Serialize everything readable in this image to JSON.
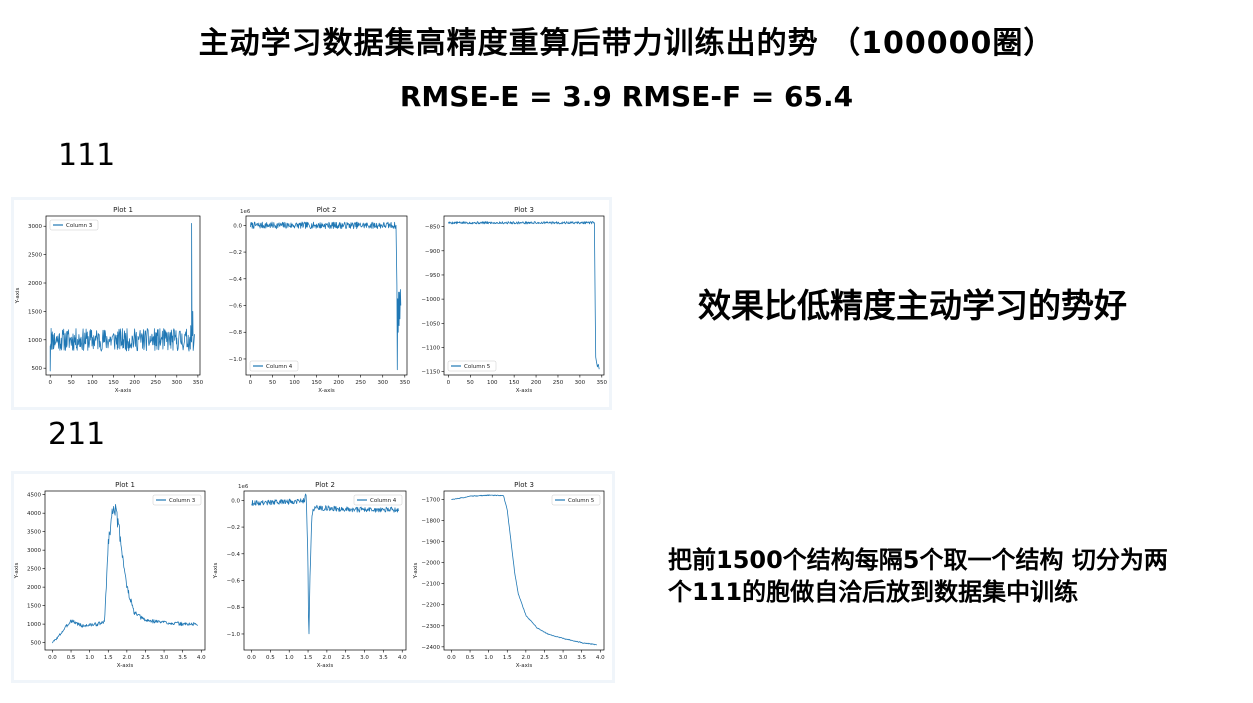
{
  "slide": {
    "title": "主动学习数据集高精度重算后带力训练出的势 （100000圈）",
    "subtitle": "RMSE-E = 3.9    RMSE-F = 65.4",
    "label_111": "111",
    "label_211": "211",
    "note_right": "效果比低精度主动学习的势好",
    "note_bottom_line1": "把前1500个结构每隔5个取一个结构 切分为两",
    "note_bottom_line2": "个111的胞做自洽后放到数据集中训练"
  },
  "colors": {
    "series": "#1f77b4",
    "panel_border": "#f0f5fa"
  },
  "chart_data": [
    {
      "id": "r1p1",
      "type": "line",
      "title": "Plot 1",
      "xlabel": "X-axis",
      "ylabel": "Y-axis",
      "series_name": "Column 3",
      "legend": "top-left",
      "offset_label": "",
      "xlim": [
        -10,
        355
      ],
      "ylim": [
        380,
        3180
      ],
      "xticks": [
        0,
        50,
        100,
        150,
        200,
        250,
        300,
        350
      ],
      "xtick_labels": [
        "0",
        "50",
        "100",
        "150",
        "200",
        "250",
        "300",
        "350"
      ],
      "yticks": [
        500,
        1000,
        1500,
        2000,
        2500,
        3000
      ],
      "ytick_labels": [
        "500",
        "1000",
        "1500",
        "2000",
        "2500",
        "3000"
      ],
      "generator": {
        "kind": "noise",
        "n": 340,
        "x0": 0,
        "dx": 1,
        "base": 1000,
        "amp": 200,
        "seed": 11
      },
      "extra": [
        [
          0,
          450
        ],
        [
          2,
          1200
        ],
        [
          330,
          1000
        ],
        [
          333,
          1250
        ],
        [
          335,
          3050
        ],
        [
          336,
          1100
        ],
        [
          338,
          1500
        ],
        [
          340,
          900
        ],
        [
          342,
          1100
        ]
      ]
    },
    {
      "id": "r1p2",
      "type": "line",
      "title": "Plot 2",
      "xlabel": "X-axis",
      "ylabel": "",
      "series_name": "Column 4",
      "legend": "bottom-left",
      "offset_label": "1e6",
      "xlim": [
        -10,
        355
      ],
      "ylim": [
        -1.12,
        0.07
      ],
      "xticks": [
        0,
        50,
        100,
        150,
        200,
        250,
        300,
        350
      ],
      "xtick_labels": [
        "0",
        "50",
        "100",
        "150",
        "200",
        "250",
        "300",
        "350"
      ],
      "yticks": [
        -1.0,
        -0.8,
        -0.6,
        -0.4,
        -0.2,
        0.0
      ],
      "ytick_labels": [
        "−1.0",
        "−0.8",
        "−0.6",
        "−0.4",
        "−0.2",
        "0.0"
      ],
      "generator": {
        "kind": "noise",
        "n": 330,
        "x0": 0,
        "dx": 1,
        "base": 0.0,
        "amp": 0.025,
        "seed": 7
      },
      "extra": [
        [
          330,
          0.0
        ],
        [
          332,
          -0.45
        ],
        [
          333,
          -1.08
        ],
        [
          334,
          -0.55
        ],
        [
          335,
          -0.8
        ],
        [
          336,
          -0.5
        ],
        [
          337,
          -0.75
        ],
        [
          338,
          -0.5
        ],
        [
          339,
          -0.7
        ],
        [
          340,
          -0.48
        ],
        [
          341,
          -0.6
        ]
      ]
    },
    {
      "id": "r1p3",
      "type": "line",
      "title": "Plot 3",
      "xlabel": "X-axis",
      "ylabel": "",
      "series_name": "Column 5",
      "legend": "bottom-left",
      "offset_label": "",
      "xlim": [
        -10,
        355
      ],
      "ylim": [
        -1157,
        -828
      ],
      "xticks": [
        0,
        50,
        100,
        150,
        200,
        250,
        300,
        350
      ],
      "xtick_labels": [
        "0",
        "50",
        "100",
        "150",
        "200",
        "250",
        "300",
        "350"
      ],
      "yticks": [
        -1150,
        -1100,
        -1050,
        -1000,
        -950,
        -900,
        -850
      ],
      "ytick_labels": [
        "−1150",
        "−1100",
        "−1050",
        "−1000",
        "−950",
        "−900",
        "−850"
      ],
      "generator": {
        "kind": "noise",
        "n": 333,
        "x0": 0,
        "dx": 1,
        "base": -842,
        "amp": 2.5,
        "seed": 5
      },
      "extra": [
        [
          333,
          -842
        ],
        [
          335,
          -1020
        ],
        [
          336,
          -1120
        ],
        [
          338,
          -1130
        ],
        [
          340,
          -1140
        ],
        [
          342,
          -1135
        ],
        [
          344,
          -1145
        ]
      ]
    },
    {
      "id": "r2p1",
      "type": "line",
      "title": "Plot 1",
      "xlabel": "X-axis",
      "ylabel": "Y-axis",
      "series_name": "Column 3",
      "legend": "top-right",
      "offset_label": "",
      "xlim": [
        -0.2,
        4.1
      ],
      "ylim": [
        300,
        4600
      ],
      "xticks": [
        0.0,
        0.5,
        1.0,
        1.5,
        2.0,
        2.5,
        3.0,
        3.5,
        4.0
      ],
      "xtick_labels": [
        "0.0",
        "0.5",
        "1.0",
        "1.5",
        "2.0",
        "2.5",
        "3.0",
        "3.5",
        "4.0"
      ],
      "yticks": [
        500,
        1000,
        1500,
        2000,
        2500,
        3000,
        3500,
        4000,
        4500
      ],
      "ytick_labels": [
        "500",
        "1000",
        "1500",
        "2000",
        "2500",
        "3000",
        "3500",
        "4000",
        "4500"
      ],
      "generator": {
        "kind": "profile",
        "n": 300,
        "x0": 0,
        "x1": 3.9,
        "amp_ratio": 0.05,
        "seed": 3,
        "points": [
          [
            0,
            500
          ],
          [
            0.15,
            650
          ],
          [
            0.5,
            1100
          ],
          [
            0.8,
            950
          ],
          [
            1.2,
            1000
          ],
          [
            1.4,
            1050
          ],
          [
            1.5,
            3200
          ],
          [
            1.65,
            4300
          ],
          [
            1.8,
            3500
          ],
          [
            2.0,
            2000
          ],
          [
            2.2,
            1300
          ],
          [
            2.5,
            1100
          ],
          [
            3.0,
            1050
          ],
          [
            3.5,
            1000
          ],
          [
            3.9,
            1000
          ]
        ]
      },
      "extra": []
    },
    {
      "id": "r2p2",
      "type": "line",
      "title": "Plot 2",
      "xlabel": "X-axis",
      "ylabel": "Y-axis",
      "series_name": "Column 4",
      "legend": "top-right",
      "offset_label": "1e6",
      "xlim": [
        -0.2,
        4.1
      ],
      "ylim": [
        -1.12,
        0.07
      ],
      "xticks": [
        0.0,
        0.5,
        1.0,
        1.5,
        2.0,
        2.5,
        3.0,
        3.5,
        4.0
      ],
      "xtick_labels": [
        "0.0",
        "0.5",
        "1.0",
        "1.5",
        "2.0",
        "2.5",
        "3.0",
        "3.5",
        "4.0"
      ],
      "yticks": [
        -1.0,
        -0.8,
        -0.6,
        -0.4,
        -0.2,
        0.0
      ],
      "ytick_labels": [
        "−1.0",
        "−0.8",
        "−0.6",
        "−0.4",
        "−0.2",
        "0.0"
      ],
      "generator": {
        "kind": "profile",
        "n": 300,
        "x0": 0,
        "x1": 3.9,
        "amp_abs": 0.02,
        "seed": 9,
        "points": [
          [
            0,
            -0.02
          ],
          [
            1.0,
            -0.01
          ],
          [
            1.4,
            0.0
          ],
          [
            1.45,
            0.05
          ],
          [
            1.5,
            -0.5
          ],
          [
            1.52,
            -1.08
          ],
          [
            1.55,
            -0.6
          ],
          [
            1.6,
            -0.1
          ],
          [
            1.7,
            -0.05
          ],
          [
            2.0,
            -0.06
          ],
          [
            3.0,
            -0.07
          ],
          [
            3.9,
            -0.07
          ]
        ]
      },
      "extra": []
    },
    {
      "id": "r2p3",
      "type": "line",
      "title": "Plot 3",
      "xlabel": "X-axis",
      "ylabel": "Y-axis",
      "series_name": "Column 5",
      "legend": "top-right",
      "offset_label": "",
      "xlim": [
        -0.2,
        4.1
      ],
      "ylim": [
        -2415,
        -1660
      ],
      "xticks": [
        0.0,
        0.5,
        1.0,
        1.5,
        2.0,
        2.5,
        3.0,
        3.5,
        4.0
      ],
      "xtick_labels": [
        "0.0",
        "0.5",
        "1.0",
        "1.5",
        "2.0",
        "2.5",
        "3.0",
        "3.5",
        "4.0"
      ],
      "yticks": [
        -2400,
        -2300,
        -2200,
        -2100,
        -2000,
        -1900,
        -1800,
        -1700
      ],
      "ytick_labels": [
        "−2400",
        "−2300",
        "−2200",
        "−2100",
        "−2000",
        "−1900",
        "−1800",
        "−1700"
      ],
      "generator": {
        "kind": "profile",
        "n": 300,
        "x0": 0,
        "x1": 3.9,
        "amp_abs": 2,
        "seed": 2,
        "points": [
          [
            0,
            -1700
          ],
          [
            0.2,
            -1695
          ],
          [
            0.5,
            -1685
          ],
          [
            1.0,
            -1680
          ],
          [
            1.4,
            -1682
          ],
          [
            1.5,
            -1750
          ],
          [
            1.6,
            -1900
          ],
          [
            1.7,
            -2050
          ],
          [
            1.8,
            -2150
          ],
          [
            2.0,
            -2250
          ],
          [
            2.3,
            -2310
          ],
          [
            2.6,
            -2340
          ],
          [
            3.0,
            -2360
          ],
          [
            3.5,
            -2380
          ],
          [
            3.9,
            -2390
          ]
        ]
      },
      "extra": []
    }
  ]
}
